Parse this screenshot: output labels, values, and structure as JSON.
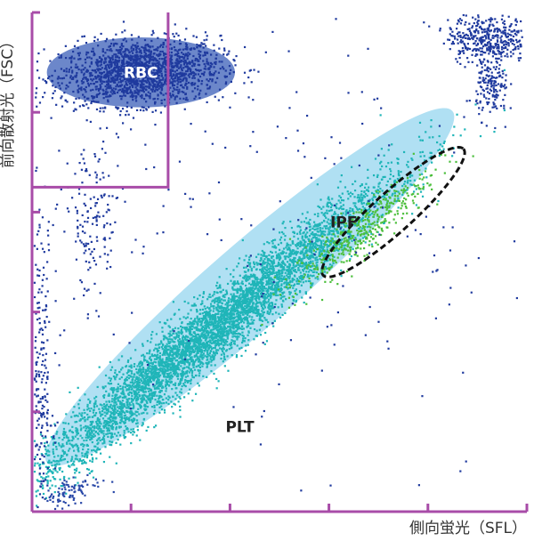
{
  "chart_data": {
    "type": "scatter",
    "title": "",
    "xlabel": "側向蛍光（SFL）",
    "ylabel": "前向散射光（FSC）",
    "xlim": [
      0,
      100
    ],
    "ylim": [
      0,
      100
    ],
    "axis_color": "#a84ca8",
    "regions": [
      {
        "name": "RBC",
        "label_color": "#ffffff",
        "fill": "#3b5fb8",
        "fill_opacity": 0.75,
        "shape": "ellipse",
        "center": [
          22,
          88
        ],
        "radius": [
          19,
          7
        ],
        "rotation_deg": 0
      },
      {
        "name": "PLT",
        "label_color": "#222222",
        "fill": "#8fd3ee",
        "fill_opacity": 0.7,
        "shape": "ellipse",
        "center": [
          44,
          45
        ],
        "radius": [
          54,
          8.5
        ],
        "rotation_deg": -41
      },
      {
        "name": "IPF",
        "label_color": "#222222",
        "fill": "none",
        "stroke": "#111111",
        "stroke_style": "dashed",
        "shape": "ellipse",
        "center": [
          73,
          60
        ],
        "radius": [
          19,
          4
        ],
        "rotation_deg": -42
      }
    ],
    "gate_box": {
      "x": [
        0,
        27.5
      ],
      "y": [
        65,
        100
      ],
      "color": "#a84ca8"
    },
    "point_groups": [
      {
        "name": "RBC",
        "color": "#1f3a9e",
        "count": 1800,
        "center": [
          22,
          88
        ],
        "spread": [
          8,
          3.2
        ],
        "corr": 0.15
      },
      {
        "name": "PLT",
        "color": "#1fb5b8",
        "count": 5200,
        "center": [
          36,
          36
        ],
        "spread": [
          18,
          15
        ],
        "corr": 0.97
      },
      {
        "name": "PLT-low",
        "color": "#2a49a8",
        "count": 90,
        "center": [
          8,
          4
        ],
        "spread": [
          3,
          2
        ],
        "corr": 0.6
      },
      {
        "name": "IPF",
        "color": "#4cbf3c",
        "count": 420,
        "center": [
          66,
          56
        ],
        "spread": [
          7,
          6
        ],
        "corr": 0.9
      },
      {
        "name": "upper-right",
        "color": "#1f3a9e",
        "count": 420,
        "center": [
          92,
          95
        ],
        "spread": [
          4,
          2.5
        ],
        "corr": 0.0
      },
      {
        "name": "right-cluster",
        "color": "#1f3a9e",
        "count": 160,
        "center": [
          93,
          85
        ],
        "spread": [
          1.6,
          3
        ],
        "corr": 0.0
      },
      {
        "name": "left-column",
        "color": "#1f3a9e",
        "count": 280,
        "center": [
          1.5,
          25
        ],
        "spread": [
          1.4,
          17
        ],
        "corr": 0.0
      },
      {
        "name": "mid-left",
        "color": "#1f3a9e",
        "count": 150,
        "center": [
          12,
          58
        ],
        "spread": [
          3,
          8
        ],
        "corr": 0.0
      },
      {
        "name": "scatter",
        "color": "#1f3a9e",
        "count": 220,
        "center": [
          50,
          60
        ],
        "spread": [
          28,
          30
        ],
        "corr": 0.0
      }
    ]
  }
}
